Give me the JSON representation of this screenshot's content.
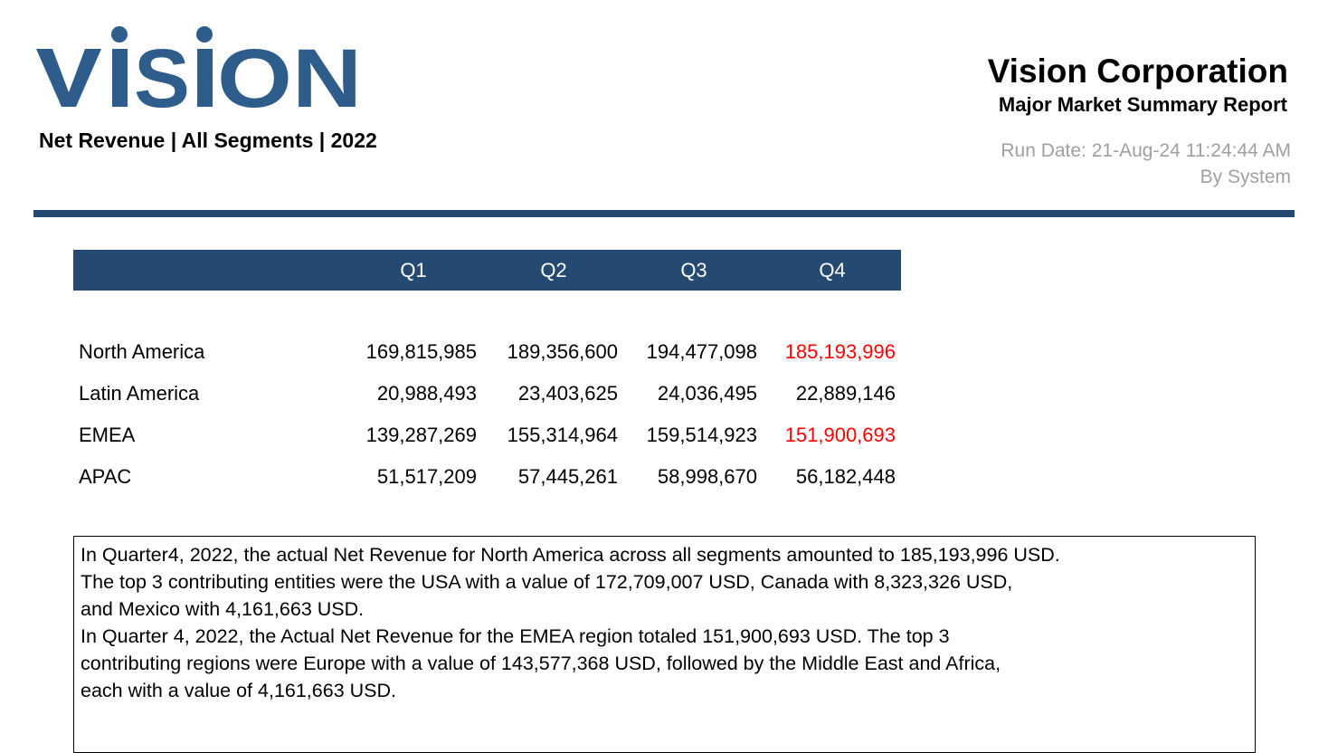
{
  "header": {
    "logo_text": "VISION",
    "subtitle": "Net Revenue | All Segments | 2022",
    "company": "Vision Corporation",
    "report_title": "Major Market Summary Report",
    "run_date": "Run Date: 21-Aug-24 11:24:44 AM",
    "run_by": "By System"
  },
  "colors": {
    "brand": "#254a72",
    "logo": "#2e5d8c",
    "highlight": "#ff0000",
    "muted": "#a0a0a0"
  },
  "table": {
    "columns": [
      "Q1",
      "Q2",
      "Q3",
      "Q4"
    ],
    "rows": [
      {
        "label": "North America",
        "values": [
          "169,815,985",
          "189,356,600",
          "194,477,098",
          "185,193,996"
        ],
        "highlight": [
          false,
          false,
          false,
          true
        ]
      },
      {
        "label": "Latin America",
        "values": [
          "20,988,493",
          "23,403,625",
          "24,036,495",
          "22,889,146"
        ],
        "highlight": [
          false,
          false,
          false,
          false
        ]
      },
      {
        "label": "EMEA",
        "values": [
          "139,287,269",
          "155,314,964",
          "159,514,923",
          "151,900,693"
        ],
        "highlight": [
          false,
          false,
          false,
          true
        ]
      },
      {
        "label": "APAC",
        "values": [
          "51,517,209",
          "57,445,261",
          "58,998,670",
          "56,182,448"
        ],
        "highlight": [
          false,
          false,
          false,
          false
        ]
      }
    ]
  },
  "commentary": {
    "lines": [
      "In Quarter4, 2022, the actual Net Revenue for North America across all segments amounted to 185,193,996 USD.",
      "The top 3 contributing entities were the USA with a value of 172,709,007 USD, Canada with 8,323,326 USD,",
      "and Mexico with 4,161,663 USD.",
      "In Quarter 4, 2022, the Actual Net Revenue for the EMEA region totaled 151,900,693 USD. The top 3",
      "contributing regions were Europe with a value of 143,577,368 USD, followed by the Middle East and Africa,",
      "each with a value of 4,161,663 USD."
    ]
  }
}
